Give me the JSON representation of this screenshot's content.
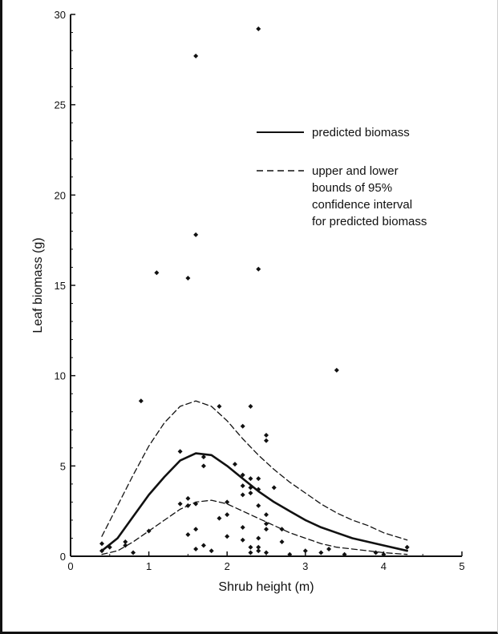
{
  "chart_data": {
    "type": "scatter",
    "title": "",
    "xlabel": "Shrub height (m)",
    "ylabel": "Leaf biomass (g)",
    "xlim": [
      0,
      5
    ],
    "ylim": [
      0,
      30
    ],
    "x_ticks": [
      "0",
      "1",
      "2",
      "3",
      "4",
      "5"
    ],
    "y_ticks": [
      "0",
      "5",
      "10",
      "15",
      "20",
      "25",
      "30"
    ],
    "grid": false,
    "legend": {
      "placement": "top-right",
      "entries": [
        {
          "style": "solid",
          "lines": [
            "predicted biomass"
          ]
        },
        {
          "style": "dashed",
          "lines": [
            "upper and lower",
            "bounds of 95%",
            "confidence interval",
            "for predicted biomass"
          ]
        }
      ]
    },
    "points": [
      [
        2.4,
        29.2
      ],
      [
        1.6,
        27.7
      ],
      [
        1.6,
        17.8
      ],
      [
        1.1,
        15.7
      ],
      [
        1.5,
        15.4
      ],
      [
        2.4,
        15.9
      ],
      [
        3.4,
        10.3
      ],
      [
        0.9,
        8.6
      ],
      [
        1.9,
        8.3
      ],
      [
        2.3,
        8.3
      ],
      [
        2.2,
        7.2
      ],
      [
        2.5,
        6.7
      ],
      [
        2.5,
        6.4
      ],
      [
        1.4,
        5.8
      ],
      [
        1.7,
        5.5
      ],
      [
        1.7,
        5.0
      ],
      [
        2.1,
        5.1
      ],
      [
        2.2,
        4.5
      ],
      [
        2.3,
        4.3
      ],
      [
        2.4,
        4.3
      ],
      [
        2.2,
        3.9
      ],
      [
        2.3,
        3.8
      ],
      [
        2.4,
        3.7
      ],
      [
        2.6,
        3.8
      ],
      [
        2.3,
        3.5
      ],
      [
        2.2,
        3.4
      ],
      [
        1.5,
        3.2
      ],
      [
        1.4,
        2.9
      ],
      [
        1.6,
        2.9
      ],
      [
        1.5,
        2.8
      ],
      [
        2.0,
        3.0
      ],
      [
        2.4,
        2.8
      ],
      [
        2.0,
        2.3
      ],
      [
        2.5,
        2.3
      ],
      [
        1.9,
        2.1
      ],
      [
        2.5,
        1.8
      ],
      [
        2.2,
        1.6
      ],
      [
        1.6,
        1.5
      ],
      [
        1.0,
        1.4
      ],
      [
        2.5,
        1.5
      ],
      [
        2.7,
        1.5
      ],
      [
        1.5,
        1.2
      ],
      [
        2.0,
        1.1
      ],
      [
        2.4,
        1.0
      ],
      [
        2.7,
        0.8
      ],
      [
        2.2,
        0.9
      ],
      [
        0.7,
        0.8
      ],
      [
        0.7,
        0.6
      ],
      [
        1.7,
        0.6
      ],
      [
        2.3,
        0.5
      ],
      [
        1.6,
        0.4
      ],
      [
        2.4,
        0.5
      ],
      [
        2.4,
        0.3
      ],
      [
        1.8,
        0.3
      ],
      [
        2.3,
        0.2
      ],
      [
        2.5,
        0.2
      ],
      [
        0.4,
        0.7
      ],
      [
        0.5,
        0.5
      ],
      [
        0.4,
        0.3
      ],
      [
        0.8,
        0.2
      ],
      [
        3.0,
        0.3
      ],
      [
        3.3,
        0.4
      ],
      [
        3.2,
        0.2
      ],
      [
        3.5,
        0.1
      ],
      [
        3.9,
        0.2
      ],
      [
        4.3,
        0.5
      ],
      [
        2.8,
        0.1
      ],
      [
        4.0,
        0.1
      ]
    ],
    "series": [
      {
        "style": "solid",
        "x": [
          0.4,
          0.6,
          0.8,
          1.0,
          1.2,
          1.4,
          1.6,
          1.8,
          2.0,
          2.2,
          2.4,
          2.6,
          2.8,
          3.0,
          3.2,
          3.4,
          3.6,
          3.8,
          4.0,
          4.3
        ],
        "y": [
          0.3,
          1.0,
          2.2,
          3.4,
          4.4,
          5.3,
          5.7,
          5.6,
          5.0,
          4.3,
          3.6,
          3.0,
          2.5,
          2.0,
          1.6,
          1.3,
          1.0,
          0.8,
          0.6,
          0.3
        ]
      },
      {
        "style": "dashed",
        "x": [
          0.4,
          0.6,
          0.8,
          1.0,
          1.2,
          1.4,
          1.6,
          1.8,
          2.0,
          2.2,
          2.4,
          2.6,
          2.8,
          3.0,
          3.2,
          3.4,
          3.6,
          3.8,
          4.0,
          4.3
        ],
        "y": [
          1.1,
          2.8,
          4.5,
          6.1,
          7.4,
          8.3,
          8.6,
          8.3,
          7.5,
          6.5,
          5.6,
          4.8,
          4.1,
          3.5,
          2.9,
          2.4,
          2.0,
          1.7,
          1.3,
          0.9
        ]
      },
      {
        "style": "dashed",
        "x": [
          0.4,
          0.6,
          0.8,
          1.0,
          1.2,
          1.4,
          1.6,
          1.8,
          2.0,
          2.2,
          2.4,
          2.6,
          2.8,
          3.0,
          3.2,
          3.4,
          3.6,
          3.8,
          4.0,
          4.3
        ],
        "y": [
          0.1,
          0.3,
          0.8,
          1.4,
          2.0,
          2.6,
          3.0,
          3.1,
          2.9,
          2.5,
          2.1,
          1.7,
          1.3,
          1.0,
          0.7,
          0.5,
          0.4,
          0.3,
          0.2,
          0.1
        ]
      }
    ]
  }
}
